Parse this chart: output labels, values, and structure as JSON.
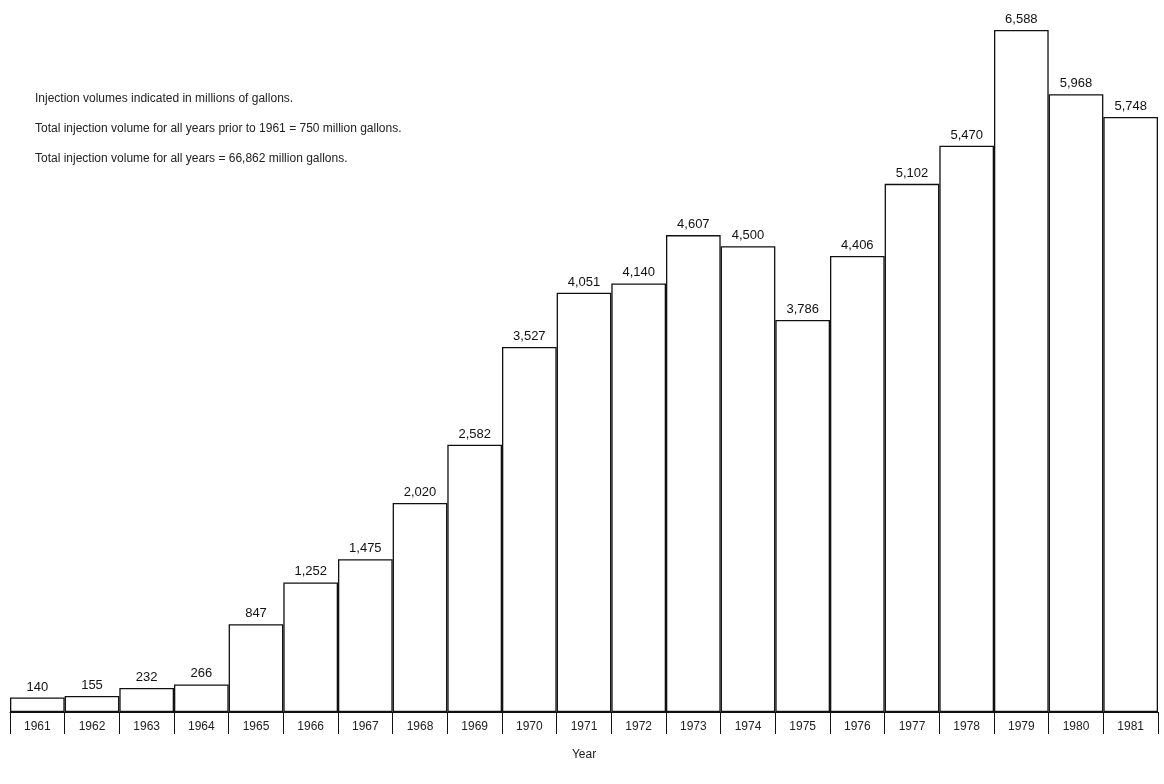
{
  "chart_data": {
    "type": "bar",
    "xlabel": "Year",
    "categories": [
      "1961",
      "1962",
      "1963",
      "1964",
      "1965",
      "1966",
      "1967",
      "1968",
      "1969",
      "1970",
      "1971",
      "1972",
      "1973",
      "1974",
      "1975",
      "1976",
      "1977",
      "1978",
      "1979",
      "1980",
      "1981"
    ],
    "values": [
      140,
      155,
      232,
      266,
      847,
      1252,
      1475,
      2020,
      2582,
      3527,
      4051,
      4140,
      4607,
      4500,
      3786,
      4406,
      5102,
      5470,
      6588,
      5968,
      5748
    ],
    "color": "#ffffff",
    "value_labels": [
      "140",
      "155",
      "232",
      "266",
      "847",
      "1,252",
      "1,475",
      "2,020",
      "2,582",
      "3,527",
      "4,051",
      "4,140",
      "4,607",
      "4,500",
      "3,786",
      "4,406",
      "5,102",
      "5,470",
      "6,588",
      "5,968",
      "5,748"
    ],
    "annotations": [
      "Injection volumes indicated in millions of gallons.",
      "Total injection volume for all years prior to 1961 = 750 million gallons.",
      "Total injection volume for all years = 66,862 million gallons."
    ]
  }
}
